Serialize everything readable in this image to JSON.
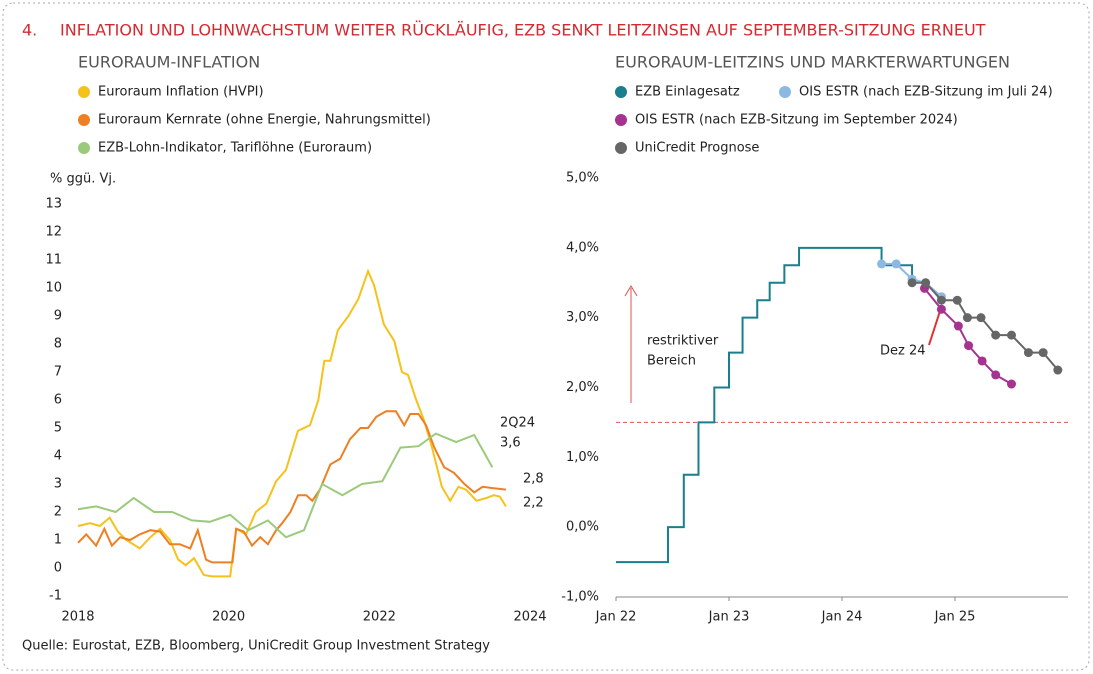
{
  "header": {
    "number": "4.",
    "title": "INFLATION UND LOHNWACHSTUM WEITER RÜCKLÄUFIG, EZB SENKT LEITZINSEN AUF SEPTEMBER-SITZUNG ERNEUT"
  },
  "source": "Quelle: Eurostat, EZB, Bloomberg, UniCredit Group Investment Strategy",
  "chart_data": [
    {
      "type": "line",
      "title": "EURORAUM-INFLATION",
      "ylabel": "% ggü. Vj.",
      "xlim": [
        2018,
        2024
      ],
      "xticks": [
        2018,
        2020,
        2022,
        2024
      ],
      "ylim": [
        -1,
        13
      ],
      "yticks": [
        -1,
        0,
        1,
        2,
        3,
        4,
        5,
        6,
        7,
        8,
        9,
        10,
        11,
        12,
        13
      ],
      "grid": false,
      "annotations": [
        "2Q24",
        "3,6",
        "2,8",
        "2,2"
      ],
      "series": [
        {
          "name": "Euroraum Inflation (HVPI)",
          "color": "#f5c21b",
          "x": [
            2018.0,
            2018.16,
            2018.29,
            2018.42,
            2018.53,
            2018.64,
            2018.82,
            2018.96,
            2019.09,
            2019.22,
            2019.33,
            2019.43,
            2019.54,
            2019.67,
            2019.78,
            2020.02,
            2020.1,
            2020.23,
            2020.36,
            2020.5,
            2020.63,
            2020.76,
            2020.92,
            2021.08,
            2021.19,
            2021.27,
            2021.35,
            2021.45,
            2021.59,
            2021.72,
            2021.85,
            2021.93,
            2022.06,
            2022.2,
            2022.3,
            2022.38,
            2022.49,
            2022.59,
            2022.7,
            2022.83,
            2022.94,
            2023.05,
            2023.15,
            2023.29,
            2023.42,
            2023.52,
            2023.6,
            2023.68
          ],
          "values": [
            1.5,
            1.6,
            1.5,
            1.8,
            1.3,
            1.0,
            0.7,
            1.1,
            1.4,
            1.0,
            0.3,
            0.1,
            0.35,
            -0.25,
            -0.3,
            -0.3,
            1.4,
            1.2,
            2.0,
            2.3,
            3.1,
            3.5,
            4.9,
            5.1,
            6.0,
            7.4,
            7.4,
            8.5,
            9.0,
            9.6,
            10.6,
            10.1,
            8.7,
            8.1,
            7.0,
            6.9,
            6.0,
            5.3,
            4.3,
            2.9,
            2.4,
            2.9,
            2.8,
            2.4,
            2.5,
            2.6,
            2.55,
            2.2
          ]
        },
        {
          "name": "Euroraum Kernrate (ohne Energie, Nahrungsmittel)",
          "color": "#ee7f22",
          "x": [
            2018.0,
            2018.11,
            2018.24,
            2018.35,
            2018.45,
            2018.56,
            2018.69,
            2018.82,
            2018.96,
            2019.09,
            2019.22,
            2019.35,
            2019.49,
            2019.59,
            2019.7,
            2019.78,
            2020.05,
            2020.1,
            2020.2,
            2020.31,
            2020.42,
            2020.52,
            2020.63,
            2020.71,
            2020.82,
            2020.92,
            2021.03,
            2021.11,
            2021.21,
            2021.35,
            2021.48,
            2021.61,
            2021.75,
            2021.85,
            2021.96,
            2022.09,
            2022.22,
            2022.33,
            2022.41,
            2022.52,
            2022.62,
            2022.73,
            2022.86,
            2022.99,
            2023.13,
            2023.26,
            2023.37,
            2023.52,
            2023.68
          ],
          "values": [
            0.9,
            1.2,
            0.8,
            1.4,
            0.8,
            1.1,
            1.0,
            1.2,
            1.35,
            1.3,
            0.85,
            0.85,
            0.7,
            1.35,
            0.3,
            0.2,
            0.2,
            1.4,
            1.3,
            0.8,
            1.1,
            0.85,
            1.35,
            1.6,
            2.0,
            2.6,
            2.6,
            2.4,
            2.8,
            3.7,
            3.9,
            4.6,
            5.0,
            5.0,
            5.4,
            5.6,
            5.6,
            5.1,
            5.5,
            5.5,
            5.1,
            4.3,
            3.6,
            3.4,
            3.0,
            2.7,
            2.9,
            2.85,
            2.8
          ]
        },
        {
          "name": "EZB-Lohn-Indikator, Tariflöhne (Euroraum)",
          "color": "#9cca7c",
          "x": [
            2018.0,
            2018.24,
            2018.5,
            2018.74,
            2019.01,
            2019.25,
            2019.51,
            2019.75,
            2020.02,
            2020.26,
            2020.52,
            2020.76,
            2021.0,
            2021.24,
            2021.51,
            2021.77,
            2022.04,
            2022.28,
            2022.52,
            2022.75,
            2023.02,
            2023.26,
            2023.5
          ],
          "values": [
            2.1,
            2.2,
            2.0,
            2.5,
            2.0,
            2.0,
            1.7,
            1.65,
            1.9,
            1.35,
            1.7,
            1.1,
            1.35,
            3.0,
            2.6,
            3.0,
            3.1,
            4.3,
            4.35,
            4.8,
            4.5,
            4.75,
            3.6
          ]
        }
      ]
    },
    {
      "type": "line",
      "title": "EURORAUM-LEITZINS UND MARKTERWARTUNGEN",
      "xlim": [
        2022,
        2026
      ],
      "xticks": [
        {
          "value": 2022,
          "label": "Jan 22"
        },
        {
          "value": 2023,
          "label": "Jan 23"
        },
        {
          "value": 2024,
          "label": "Jan 24"
        },
        {
          "value": 2025,
          "label": "Jan 25"
        }
      ],
      "ylim": [
        -1,
        5
      ],
      "yticks": [
        {
          "value": -1,
          "label": "-1,0%"
        },
        {
          "value": 0,
          "label": "0,0%"
        },
        {
          "value": 1,
          "label": "1,0%"
        },
        {
          "value": 2,
          "label": "2,0%"
        },
        {
          "value": 3,
          "label": "3,0%"
        },
        {
          "value": 4,
          "label": "4,0%"
        },
        {
          "value": 5,
          "label": "5,0%"
        }
      ],
      "grid": false,
      "reference_line": 1.5,
      "reference_color": "#e05050",
      "annotations": [
        "restriktiver",
        "Bereich",
        "Dez 24"
      ],
      "series": [
        {
          "name": "EZB Einlagesatz",
          "color": "#1b7e8c",
          "step": true,
          "x": [
            2022.0,
            2022.46,
            2022.6,
            2022.73,
            2022.87,
            2023.0,
            2023.12,
            2023.25,
            2023.36,
            2023.49,
            2023.62,
            2024.35,
            2024.62
          ],
          "values": [
            -0.5,
            0,
            0.75,
            1.5,
            2.0,
            2.5,
            3.0,
            3.25,
            3.5,
            3.75,
            4.0,
            3.75,
            3.5
          ]
        },
        {
          "name": "OIS ESTR (nach EZB-Sitzung im Juli 24)",
          "color": "#8bb9e2",
          "markers": true,
          "x": [
            2024.35,
            2024.48,
            2024.62,
            2024.74,
            2024.88
          ],
          "values": [
            3.77,
            3.77,
            3.55,
            3.5,
            3.3
          ]
        },
        {
          "name": "OIS ESTR (nach EZB-Sitzung im September 2024)",
          "color": "#a5338f",
          "markers": true,
          "x": [
            2024.73,
            2024.88,
            2025.03,
            2025.12,
            2025.24,
            2025.36,
            2025.5
          ],
          "values": [
            3.42,
            3.12,
            2.88,
            2.6,
            2.38,
            2.18,
            2.05
          ]
        },
        {
          "name": "UniCredit Prognose",
          "color": "#666666",
          "markers": true,
          "x": [
            2024.62,
            2024.74,
            2024.88,
            2025.02,
            2025.11,
            2025.23,
            2025.36,
            2025.5,
            2025.65,
            2025.78,
            2025.91
          ],
          "values": [
            3.5,
            3.5,
            3.25,
            3.25,
            3.0,
            3.0,
            2.75,
            2.75,
            2.5,
            2.5,
            2.25
          ]
        }
      ]
    }
  ]
}
